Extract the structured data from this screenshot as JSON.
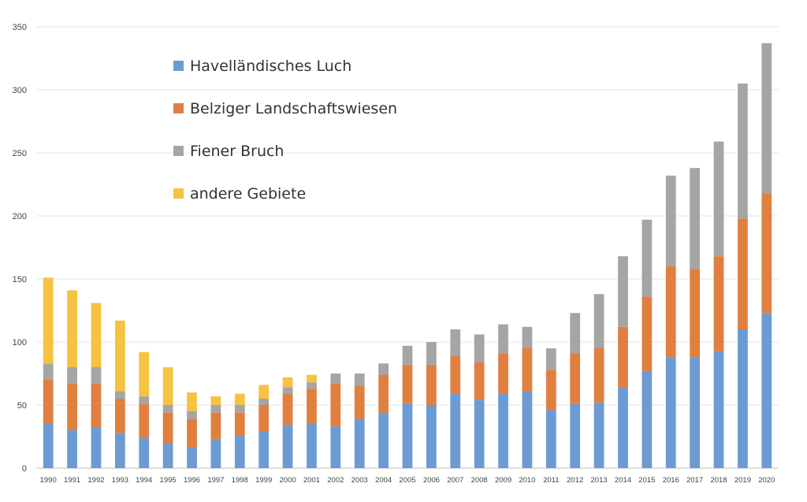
{
  "chart_data": {
    "type": "bar",
    "stacked": true,
    "title": "",
    "xlabel": "",
    "ylabel": "",
    "ylim": [
      0,
      350
    ],
    "yticks": [
      0,
      50,
      100,
      150,
      200,
      250,
      300,
      350
    ],
    "grid": true,
    "legend": "top-left",
    "categories": [
      "1990",
      "1991",
      "1992",
      "1993",
      "1994",
      "1995",
      "1996",
      "1997",
      "1998",
      "1999",
      "2000",
      "2001",
      "2002",
      "2003",
      "2004",
      "2005",
      "2006",
      "2007",
      "2008",
      "2009",
      "2010",
      "2011",
      "2012",
      "2013",
      "2014",
      "2015",
      "2016",
      "2017",
      "2018",
      "2019",
      "2020"
    ],
    "series": [
      {
        "name": "Havelländisches Luch",
        "color": "#6b9bd2",
        "values": [
          35,
          30,
          32,
          28,
          24,
          20,
          16,
          23,
          26,
          29,
          34,
          35,
          33,
          39,
          44,
          51,
          50,
          59,
          54,
          59,
          61,
          46,
          51,
          52,
          64,
          77,
          88,
          88,
          93,
          110,
          123
        ]
      },
      {
        "name": "Belziger Landschaftswiesen",
        "color": "#e07f40",
        "values": [
          35,
          37,
          35,
          27,
          27,
          24,
          23,
          21,
          18,
          21,
          25,
          28,
          34,
          26,
          30,
          31,
          32,
          30,
          30,
          32,
          34,
          32,
          40,
          43,
          48,
          59,
          72,
          70,
          75,
          88,
          95
        ]
      },
      {
        "name": "Fiener Bruch",
        "color": "#a5a5a5",
        "values": [
          13,
          13,
          13,
          6,
          6,
          6,
          6,
          6,
          6,
          5,
          5,
          5,
          8,
          10,
          9,
          15,
          18,
          21,
          22,
          23,
          17,
          17,
          32,
          43,
          56,
          61,
          72,
          80,
          91,
          107,
          119
        ]
      },
      {
        "name": "andere Gebiete",
        "color": "#f5c242",
        "values": [
          68,
          61,
          51,
          56,
          35,
          30,
          15,
          7,
          9,
          11,
          8,
          6,
          0,
          0,
          0,
          0,
          0,
          0,
          0,
          0,
          0,
          0,
          0,
          0,
          0,
          0,
          0,
          0,
          0,
          0,
          0
        ]
      }
    ]
  }
}
